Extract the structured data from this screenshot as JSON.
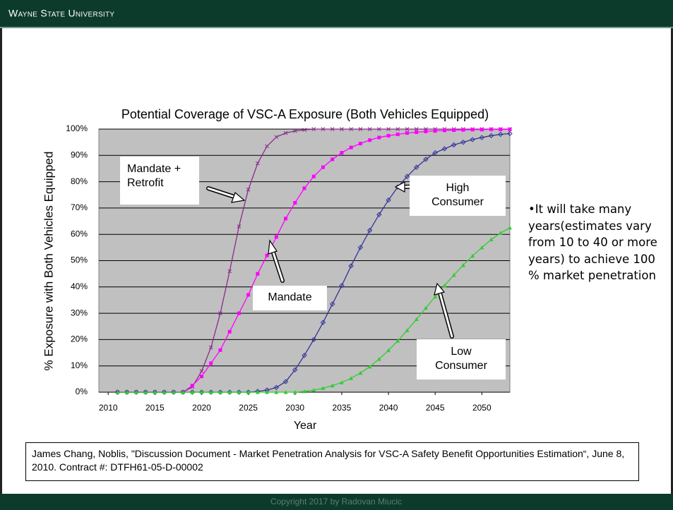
{
  "header": {
    "title": "Wayne State University"
  },
  "chart_data": {
    "type": "line",
    "title": "Potential Coverage of VSC-A Exposure (Both Vehicles Equipped)",
    "xlabel": "Year",
    "ylabel": "% Exposure with Both Vehicles Equipped",
    "x": [
      2011,
      2012,
      2013,
      2014,
      2015,
      2016,
      2017,
      2018,
      2019,
      2020,
      2021,
      2022,
      2023,
      2024,
      2025,
      2026,
      2027,
      2028,
      2029,
      2030,
      2031,
      2032,
      2033,
      2034,
      2035,
      2036,
      2037,
      2038,
      2039,
      2040,
      2041,
      2042,
      2043,
      2044,
      2045,
      2046,
      2047,
      2048,
      2049,
      2050,
      2051,
      2052,
      2053
    ],
    "xlim": [
      2009,
      2053
    ],
    "xticks": [
      2010,
      2015,
      2020,
      2025,
      2030,
      2035,
      2040,
      2045,
      2050
    ],
    "ylim": [
      0,
      100
    ],
    "yticks": [
      {
        "value": 0,
        "label": "0%"
      },
      {
        "value": 10,
        "label": "10%"
      },
      {
        "value": 20,
        "label": "20%"
      },
      {
        "value": 30,
        "label": "30%"
      },
      {
        "value": 40,
        "label": "40%"
      },
      {
        "value": 50,
        "label": "50%"
      },
      {
        "value": 60,
        "label": "60%"
      },
      {
        "value": 70,
        "label": "70%"
      },
      {
        "value": 80,
        "label": "80%"
      },
      {
        "value": 90,
        "label": "90%"
      },
      {
        "value": 100,
        "label": "100%"
      }
    ],
    "grid": true,
    "series": [
      {
        "name": "Mandate + Retrofit",
        "color": "#8b2a8b",
        "marker": "x",
        "values": [
          0,
          0,
          0,
          0,
          0,
          0,
          0,
          0,
          2,
          8,
          17,
          30,
          46,
          63,
          77,
          87,
          93.5,
          97,
          98.5,
          99.3,
          99.7,
          100,
          100,
          100,
          100,
          100,
          100,
          100,
          100,
          100,
          100,
          100,
          100,
          100,
          100,
          100,
          100,
          100,
          100,
          100,
          100,
          100,
          100
        ]
      },
      {
        "name": "Mandate",
        "color": "#ff00ff",
        "marker": "square",
        "values": [
          0,
          0,
          0,
          0,
          0,
          0,
          0,
          0,
          2.5,
          6,
          11,
          16,
          23,
          30,
          37,
          45,
          52,
          59,
          66,
          72,
          77.5,
          82,
          85.5,
          88.5,
          91,
          93,
          94.5,
          95.8,
          96.8,
          97.5,
          98,
          98.5,
          98.8,
          99.1,
          99.3,
          99.5,
          99.6,
          99.7,
          99.8,
          99.8,
          99.9,
          99.9,
          99.9
        ]
      },
      {
        "name": "High Consumer",
        "color": "#333399",
        "marker": "diamond",
        "values": [
          0,
          0,
          0,
          0,
          0,
          0,
          0,
          0,
          0,
          0,
          0,
          0,
          0,
          0,
          0,
          0.3,
          0.8,
          1.8,
          4,
          8.5,
          14,
          20,
          26.5,
          33.5,
          40.5,
          48,
          55,
          61.5,
          67.5,
          73,
          78,
          82,
          85.5,
          88.5,
          91,
          92.5,
          94,
          95,
          96,
          96.8,
          97.5,
          98,
          98.3
        ]
      },
      {
        "name": "Low Consumer",
        "color": "#33cc33",
        "marker": "triangle",
        "values": [
          0,
          0,
          0,
          0,
          0,
          0,
          0,
          0,
          0,
          0,
          0,
          0,
          0,
          0,
          0,
          0,
          0,
          0,
          0,
          0,
          0.3,
          0.8,
          1.5,
          2.5,
          3.7,
          5.3,
          7.3,
          9.7,
          12.6,
          15.9,
          19.5,
          23.5,
          27.7,
          32,
          36.3,
          40.5,
          44.5,
          48.3,
          51.8,
          55,
          58,
          60.5,
          62.5
        ]
      }
    ]
  },
  "bullet": "•It will take many years(estimates vary  from 10 to 40 or more years) to achieve 100 % market penetration",
  "citation": "James Chang, Noblis, \"Discussion Document - Market Penetration Analysis for VSC-A Safety Benefit Opportunities Estimation“, June 8, 2010. Contract #: DTFH61-05-D-00002",
  "footer": "Copyright 2017 by Radovan Miucic"
}
